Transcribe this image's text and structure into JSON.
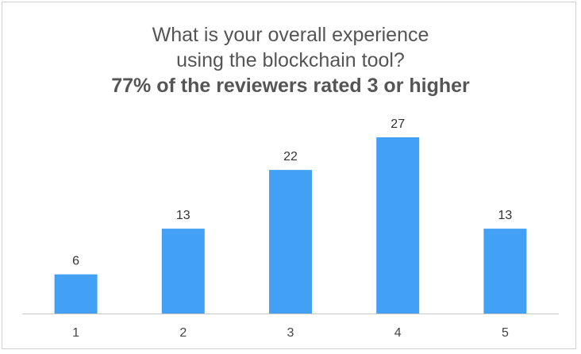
{
  "chart_data": {
    "type": "bar",
    "title": "What is your overall experience using the blockchain tool?",
    "title_lines": [
      "What is your overall experience",
      "using the blockchain tool?"
    ],
    "subtitle": "77% of the reviewers rated 3 or higher",
    "categories": [
      "1",
      "2",
      "3",
      "4",
      "5"
    ],
    "values": [
      6,
      13,
      22,
      27,
      13
    ],
    "xlabel": "",
    "ylabel": "",
    "ylim": [
      0,
      27
    ],
    "grid": false,
    "legend": "none",
    "bar_color": "#42a0f5",
    "axis_color": "#c8c8c8"
  }
}
